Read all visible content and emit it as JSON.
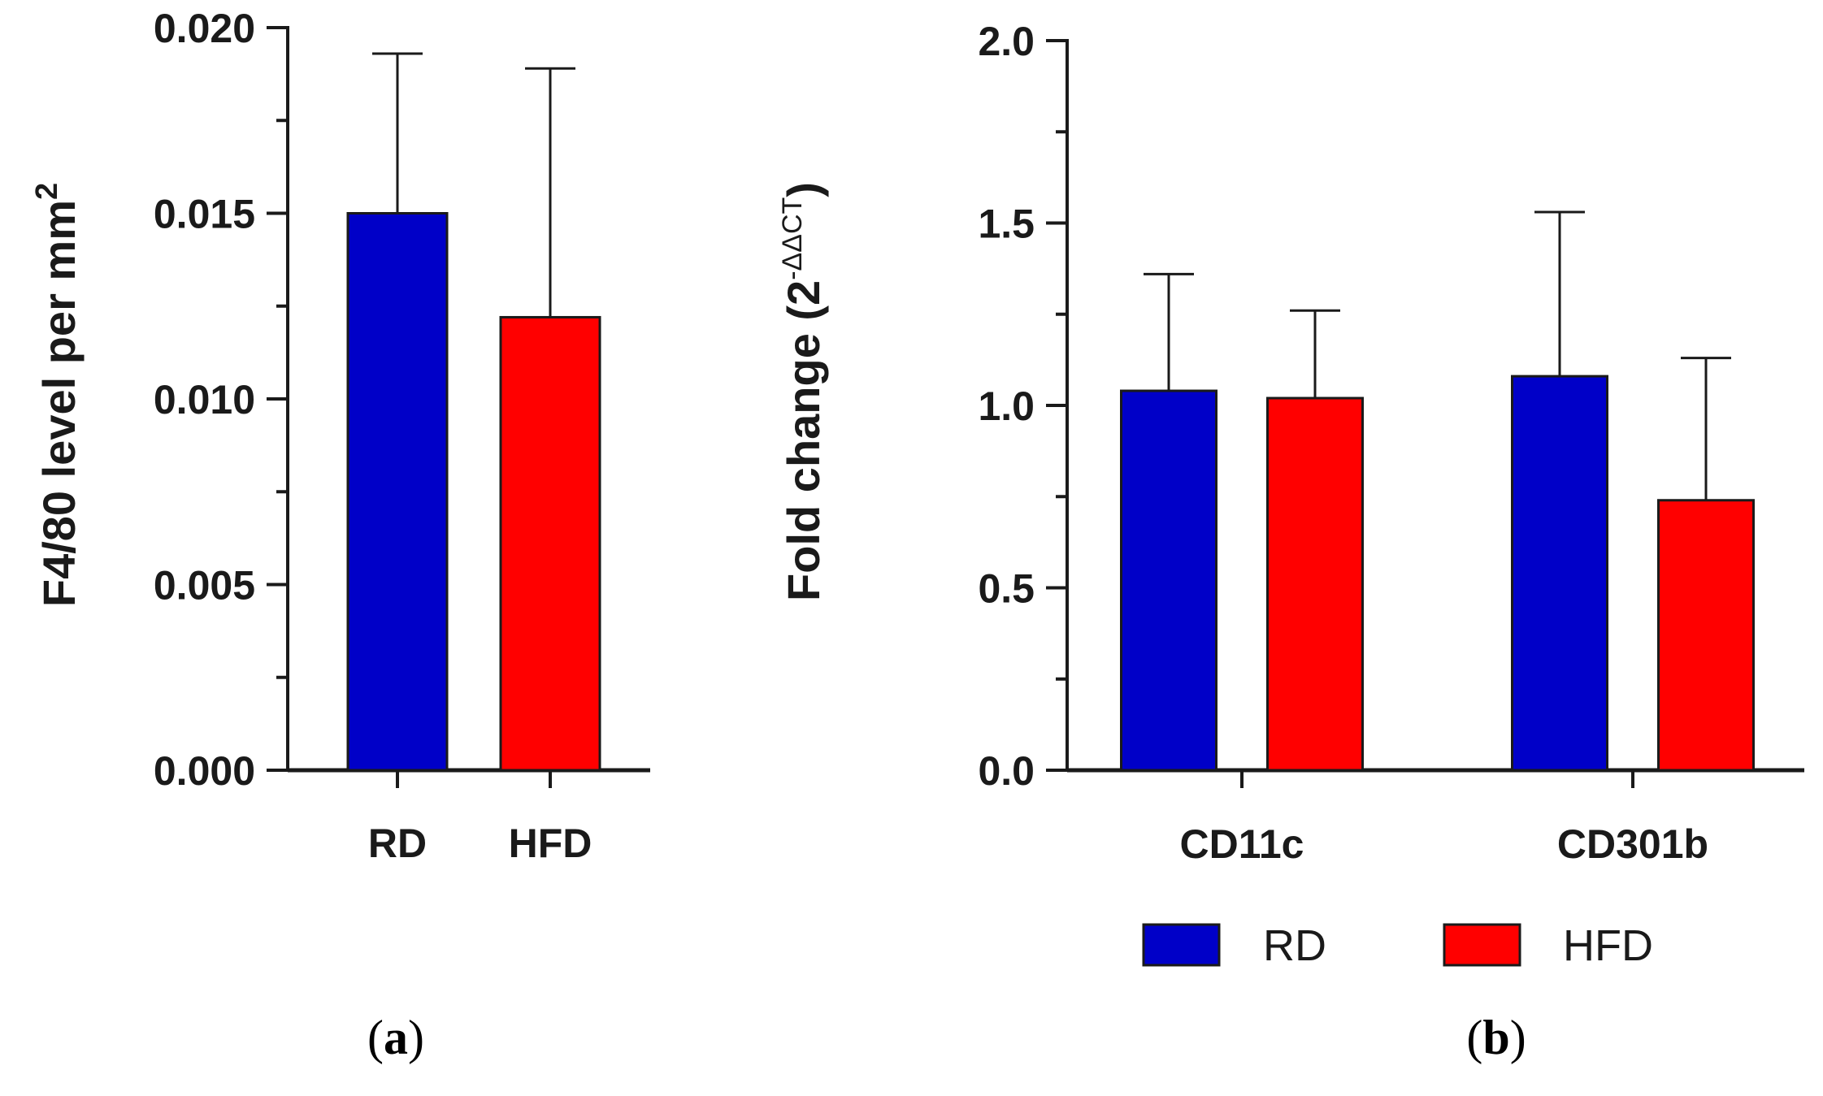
{
  "colors": {
    "RD": "#0000c8",
    "HFD": "#ff0000",
    "axis": "#1a1a1a"
  },
  "chart_data": [
    {
      "panel": "(a)",
      "panel_letter": "a",
      "type": "bar",
      "categories": [
        "RD",
        "HFD"
      ],
      "values": [
        0.015,
        0.0122
      ],
      "error_upper": [
        0.0193,
        0.0189
      ],
      "ylabel_main": "F4/80 level per mm",
      "ylabel_sup": "2",
      "ylim": [
        0,
        0.02
      ],
      "yticks": [
        "0.000",
        "0.005",
        "0.010",
        "0.015",
        "0.020"
      ],
      "ytick_values": [
        0,
        0.005,
        0.01,
        0.015,
        0.02
      ]
    },
    {
      "panel": "(b)",
      "panel_letter": "b",
      "type": "bar",
      "categories": [
        "CD11c",
        "CD301b"
      ],
      "series": [
        {
          "name": "RD",
          "values": [
            1.04,
            1.08
          ],
          "error_upper": [
            1.36,
            1.53
          ]
        },
        {
          "name": "HFD",
          "values": [
            1.02,
            0.74
          ],
          "error_upper": [
            1.26,
            1.13
          ]
        }
      ],
      "ylabel_main": "Fold change (2",
      "ylabel_sup": "-ΔΔCT",
      "ylabel_end": ")",
      "ylim": [
        0,
        2.0
      ],
      "yticks": [
        "0.0",
        "0.5",
        "1.0",
        "1.5",
        "2.0"
      ],
      "ytick_values": [
        0,
        0.5,
        1.0,
        1.5,
        2.0
      ],
      "legend": [
        "RD",
        "HFD"
      ]
    }
  ]
}
